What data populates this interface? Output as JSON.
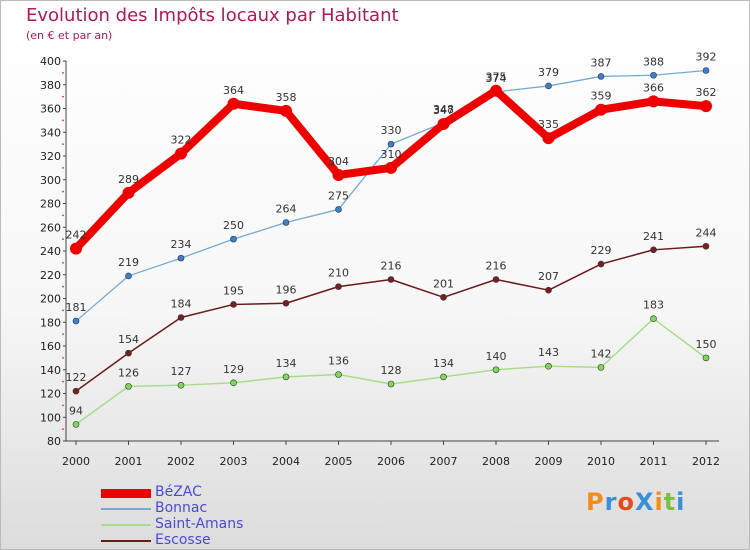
{
  "title": "Evolution des Impôts locaux par Habitant",
  "subtitle": "(en € et par an)",
  "logo": {
    "text": "ProXiti",
    "letter_colors": [
      "#f28c1e",
      "#3a8fd9",
      "#e84a1c",
      "#3a8fd9",
      "#f28c1e",
      "#7ac143",
      "#3a8fd9"
    ]
  },
  "chart_data": {
    "type": "line",
    "categories": [
      "2000",
      "2001",
      "2002",
      "2003",
      "2004",
      "2005",
      "2006",
      "2007",
      "2008",
      "2009",
      "2010",
      "2011",
      "2012"
    ],
    "ylim": [
      80,
      400
    ],
    "yticks": [
      80,
      100,
      120,
      140,
      160,
      180,
      200,
      220,
      240,
      260,
      280,
      300,
      320,
      340,
      360,
      380,
      400
    ],
    "grid": false,
    "legend_position": "bottom-left",
    "series": [
      {
        "name": "Escosse",
        "color": "#6b1a1a",
        "marker": "#7a1f1f",
        "values": [
          122,
          154,
          184,
          195,
          196,
          210,
          216,
          201,
          216,
          207,
          229,
          241,
          244
        ]
      },
      {
        "name": "Saint-Amans",
        "color": "#a8dc8a",
        "marker": "#7ed957",
        "values": [
          94,
          126,
          127,
          129,
          134,
          136,
          128,
          134,
          140,
          143,
          142,
          183,
          150
        ]
      },
      {
        "name": "Bonnac",
        "color": "#7aaad4",
        "marker": "#3a7fd0",
        "values": [
          181,
          219,
          234,
          250,
          264,
          275,
          330,
          348,
          374,
          379,
          387,
          388,
          392
        ]
      },
      {
        "name": "BéZAC",
        "color": "#ee0000",
        "marker": "#ee0000",
        "values": [
          242,
          289,
          322,
          364,
          358,
          304,
          310,
          347,
          375,
          335,
          359,
          366,
          362
        ]
      }
    ],
    "legend_order": [
      "BéZAC",
      "Bonnac",
      "Saint-Amans",
      "Escosse"
    ]
  }
}
